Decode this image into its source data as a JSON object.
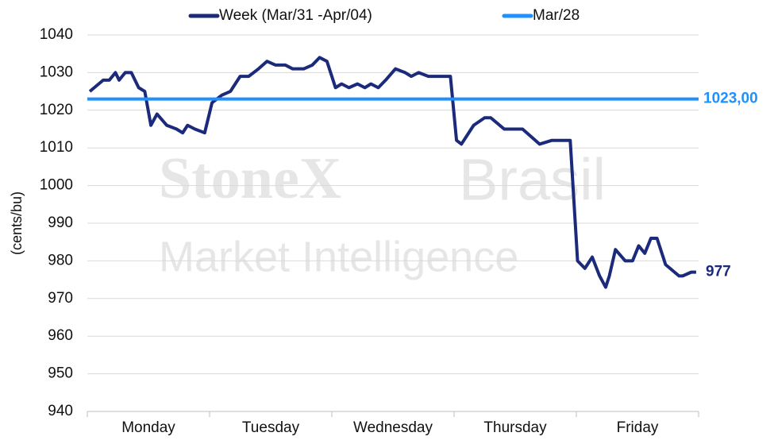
{
  "chart_data": {
    "type": "line",
    "y_label": "(cents/bu)",
    "watermark": [
      "StoneX",
      "Brasil",
      "Market Intelligence"
    ],
    "categories": [
      "Monday",
      "Tuesday",
      "Wednesday",
      "Thursday",
      "Friday"
    ],
    "xlim": [
      0,
      5
    ],
    "ylim": [
      940,
      1040
    ],
    "yticks": [
      940,
      950,
      960,
      970,
      980,
      990,
      1000,
      1010,
      1020,
      1030,
      1040
    ],
    "grid": true,
    "legend": "top",
    "series": [
      {
        "name": "Week (Mar/31 -Apr/04)",
        "color": "#1b2a7a",
        "end_label": "977",
        "x": [
          0.02,
          0.13,
          0.18,
          0.23,
          0.26,
          0.31,
          0.36,
          0.42,
          0.47,
          0.52,
          0.57,
          0.65,
          0.73,
          0.78,
          0.82,
          0.88,
          0.96,
          1.02,
          1.1,
          1.17,
          1.25,
          1.32,
          1.4,
          1.47,
          1.54,
          1.62,
          1.68,
          1.72,
          1.77,
          1.84,
          1.9,
          1.96,
          2.03,
          2.08,
          2.14,
          2.21,
          2.27,
          2.32,
          2.38,
          2.44,
          2.52,
          2.6,
          2.65,
          2.71,
          2.79,
          2.86,
          2.91,
          2.97,
          3.02,
          3.06,
          3.16,
          3.25,
          3.3,
          3.41,
          3.47,
          3.56,
          3.7,
          3.8,
          3.86,
          3.95,
          4.01,
          4.07,
          4.13,
          4.19,
          4.24,
          4.27,
          4.32,
          4.4,
          4.46,
          4.51,
          4.56,
          4.61,
          4.66,
          4.73,
          4.84,
          4.87,
          4.94,
          4.98
        ],
        "values": [
          1025,
          1028,
          1028,
          1030,
          1028,
          1030,
          1030,
          1026,
          1025,
          1016,
          1019,
          1016,
          1015,
          1014,
          1016,
          1015,
          1014,
          1022,
          1024,
          1025,
          1029,
          1029,
          1031,
          1033,
          1032,
          1032,
          1031,
          1031,
          1031,
          1032,
          1034,
          1033,
          1026,
          1027,
          1026,
          1027,
          1026,
          1027,
          1026,
          1028,
          1031,
          1030,
          1029,
          1030,
          1029,
          1029,
          1029,
          1029,
          1012,
          1011,
          1016,
          1018,
          1018,
          1015,
          1015,
          1015,
          1011,
          1012,
          1012,
          1012,
          980,
          978,
          981,
          976,
          973,
          976,
          983,
          980,
          980,
          984,
          982,
          986,
          986,
          979,
          976,
          976,
          977,
          977
        ]
      },
      {
        "name": "Mar/28",
        "color": "#1e90ff",
        "value": 1023,
        "value_label": "1023,00"
      }
    ]
  }
}
